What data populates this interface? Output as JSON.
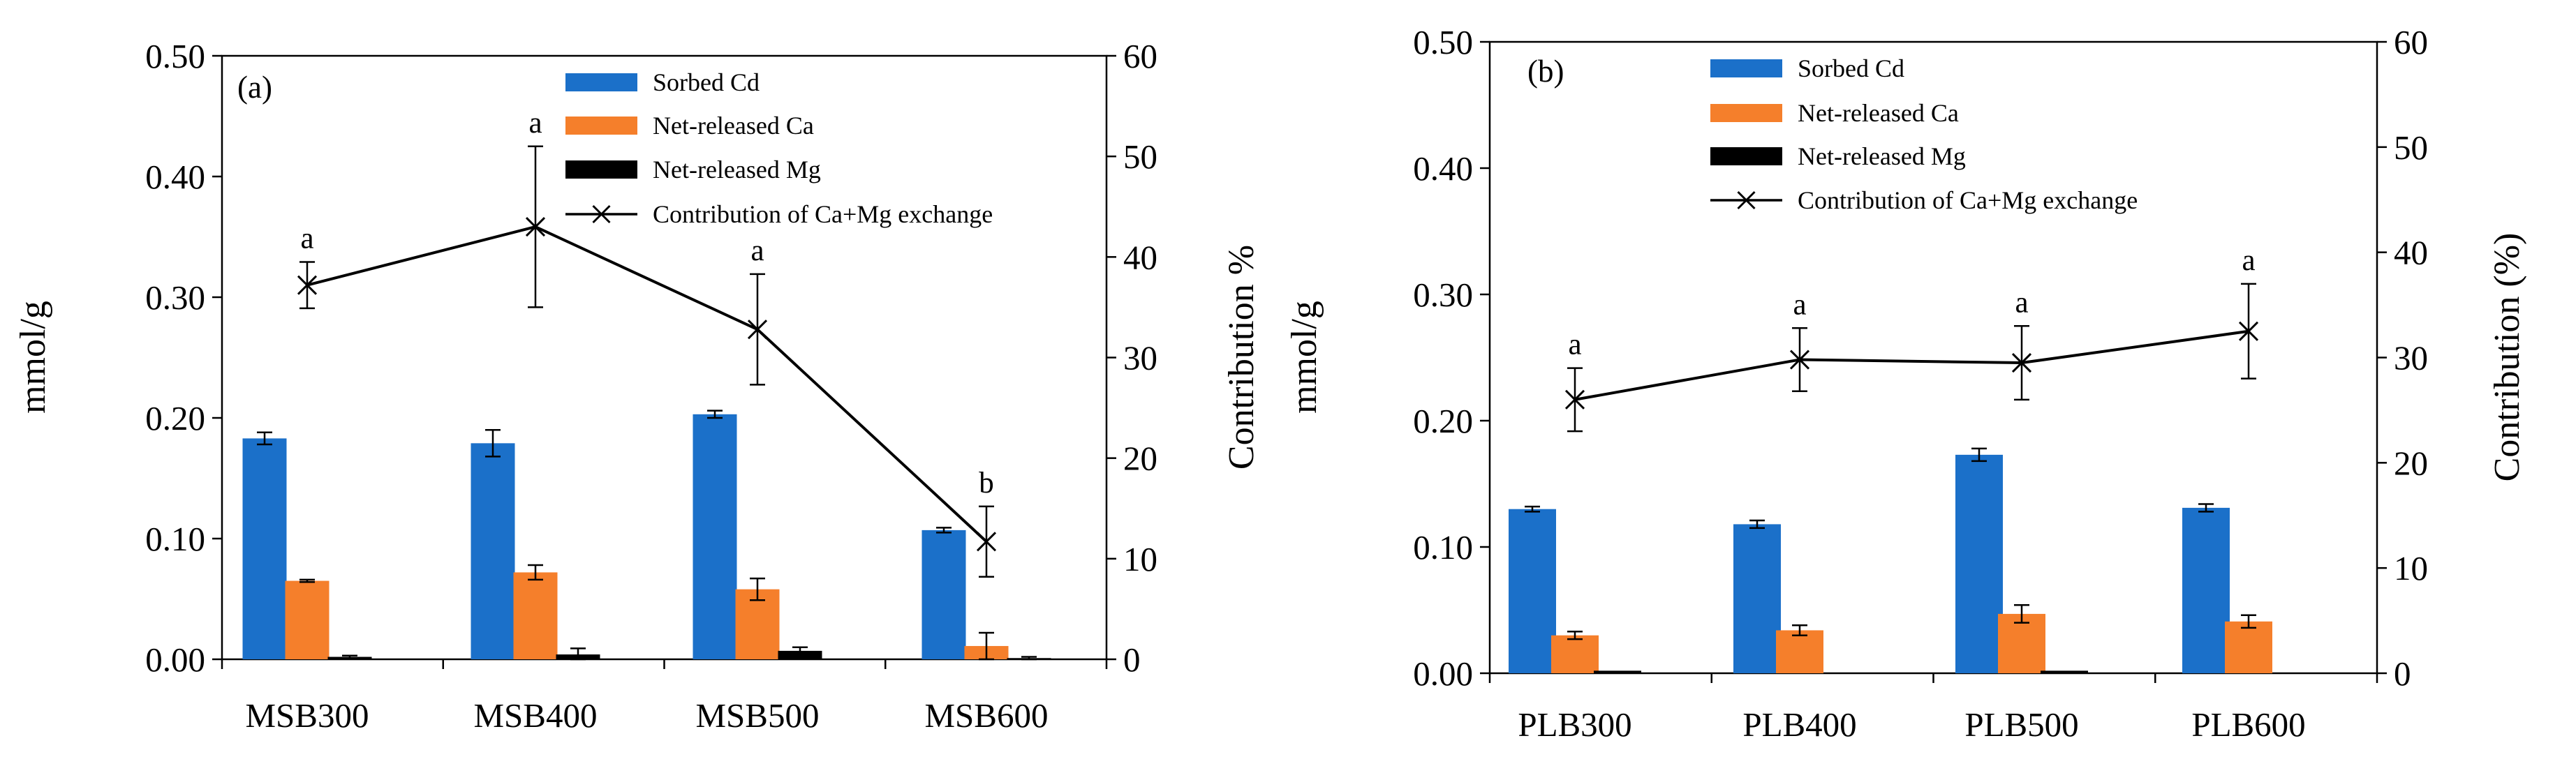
{
  "colors": {
    "sorbed_cd": "#1b70c9",
    "net_ca": "#f57f2b",
    "net_mg": "#000000",
    "contribution": "#000000",
    "axis": "#000000"
  },
  "chart_data": [
    {
      "type": "bar",
      "panel_label": "(a)",
      "categories": [
        "MSB300",
        "MSB400",
        "MSB500",
        "MSB600"
      ],
      "ylabel": "mmol/g",
      "ylim": [
        0,
        0.5
      ],
      "y_ticks": [
        "0.00",
        "0.10",
        "0.20",
        "0.30",
        "0.40",
        "0.50"
      ],
      "y2label": "Contribution %",
      "y2lim": [
        0,
        60
      ],
      "y2_ticks": [
        "0",
        "10",
        "20",
        "30",
        "40",
        "50",
        "60"
      ],
      "grid": false,
      "legend_position": "top-center",
      "series": [
        {
          "name": "Sorbed Cd",
          "kind": "bar",
          "axis": "left",
          "color_key": "sorbed_cd",
          "values": [
            0.183,
            0.179,
            0.203,
            0.107
          ],
          "errors": [
            0.005,
            0.011,
            0.003,
            0.002
          ]
        },
        {
          "name": "Net-released Ca",
          "kind": "bar",
          "axis": "left",
          "color_key": "net_ca",
          "values": [
            0.065,
            0.072,
            0.058,
            0.011
          ],
          "errors": [
            0.001,
            0.006,
            0.009,
            0.011
          ]
        },
        {
          "name": "Net-released Mg",
          "kind": "bar",
          "axis": "left",
          "color_key": "net_mg",
          "values": [
            0.002,
            0.004,
            0.007,
            0.001
          ],
          "errors": [
            0.001,
            0.005,
            0.003,
            0.001
          ]
        },
        {
          "name": "Contribution of Ca+Mg exchange",
          "kind": "line",
          "axis": "right",
          "color_key": "contribution",
          "values": [
            37.2,
            43.0,
            32.8,
            11.7
          ],
          "errors": [
            2.3,
            8.0,
            5.5,
            3.5
          ],
          "annotations": [
            "a",
            "a",
            "a",
            "b"
          ]
        }
      ]
    },
    {
      "type": "bar",
      "panel_label": "(b)",
      "categories": [
        "PLB300",
        "PLB400",
        "PLB500",
        "PLB600"
      ],
      "ylabel": "mmol/g",
      "ylim": [
        0,
        0.5
      ],
      "y_ticks": [
        "0.00",
        "0.10",
        "0.20",
        "0.30",
        "0.40",
        "0.50"
      ],
      "y2label": "Contribution (%)",
      "y2lim": [
        0,
        60
      ],
      "y2_ticks": [
        "0",
        "10",
        "20",
        "30",
        "40",
        "50",
        "60"
      ],
      "grid": false,
      "legend_position": "top-center",
      "series": [
        {
          "name": "Sorbed Cd",
          "kind": "bar",
          "axis": "left",
          "color_key": "sorbed_cd",
          "values": [
            0.13,
            0.118,
            0.173,
            0.131
          ],
          "errors": [
            0.002,
            0.003,
            0.005,
            0.003
          ]
        },
        {
          "name": "Net-released Ca",
          "kind": "bar",
          "axis": "left",
          "color_key": "net_ca",
          "values": [
            0.03,
            0.034,
            0.047,
            0.041
          ],
          "errors": [
            0.003,
            0.004,
            0.007,
            0.005
          ]
        },
        {
          "name": "Net-released Mg",
          "kind": "bar",
          "axis": "left",
          "color_key": "net_mg",
          "values": [
            0.002,
            0.0,
            0.002,
            0.0
          ],
          "errors": [
            0.0,
            0.0,
            0.0,
            0.0
          ]
        },
        {
          "name": "Contribution of Ca+Mg exchange",
          "kind": "line",
          "axis": "right",
          "color_key": "contribution",
          "values": [
            26.0,
            29.8,
            29.5,
            32.5
          ],
          "errors": [
            3.0,
            3.0,
            3.5,
            4.5
          ],
          "annotations": [
            "a",
            "a",
            "a",
            "a"
          ]
        }
      ]
    }
  ]
}
